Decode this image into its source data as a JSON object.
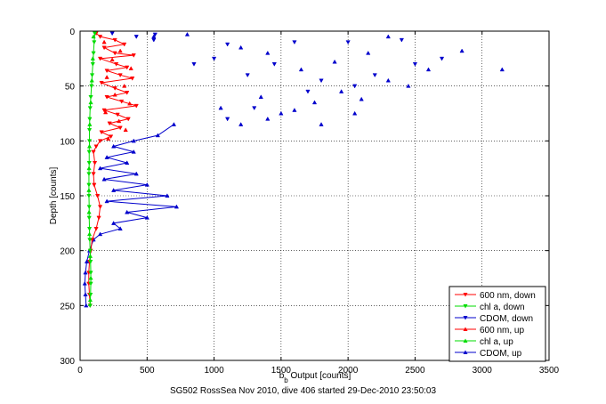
{
  "caption": "SG502 RossSea Nov 2010, dive 406 started 29-Dec-2010 23:50:03",
  "chart_data": {
    "type": "scatter",
    "xlabel": "b_b Output [counts]",
    "ylabel": "Depth [counts]",
    "xlim": [
      0,
      3500
    ],
    "ylim": [
      0,
      300
    ],
    "y_reversed": true,
    "grid": "dotted",
    "legend_placement": "bottom-right",
    "xticks": [
      "0",
      "500",
      "1000",
      "1500",
      "2000",
      "2500",
      "3000",
      "3500"
    ],
    "yticks": [
      "0",
      "50",
      "100",
      "150",
      "200",
      "250",
      "300"
    ],
    "series": [
      {
        "name": "600 nm, down",
        "color": "#ff0000",
        "marker": "triangle-down",
        "connected": true,
        "points": [
          [
            120,
            2
          ],
          [
            150,
            5
          ],
          [
            260,
            8
          ],
          [
            330,
            12
          ],
          [
            180,
            15
          ],
          [
            260,
            20
          ],
          [
            400,
            22
          ],
          [
            150,
            25
          ],
          [
            270,
            30
          ],
          [
            350,
            33
          ],
          [
            200,
            36
          ],
          [
            300,
            40
          ],
          [
            390,
            43
          ],
          [
            160,
            47
          ],
          [
            260,
            52
          ],
          [
            350,
            56
          ],
          [
            200,
            60
          ],
          [
            310,
            64
          ],
          [
            420,
            68
          ],
          [
            180,
            72
          ],
          [
            280,
            76
          ],
          [
            360,
            80
          ],
          [
            220,
            84
          ],
          [
            300,
            88
          ],
          [
            160,
            92
          ],
          [
            230,
            96
          ],
          [
            150,
            100
          ],
          [
            120,
            105
          ],
          [
            100,
            110
          ],
          [
            110,
            120
          ],
          [
            100,
            130
          ],
          [
            105,
            140
          ],
          [
            130,
            150
          ],
          [
            150,
            160
          ],
          [
            140,
            170
          ],
          [
            120,
            180
          ],
          [
            90,
            190
          ],
          [
            80,
            200
          ],
          [
            70,
            210
          ],
          [
            65,
            220
          ],
          [
            65,
            230
          ],
          [
            70,
            240
          ],
          [
            75,
            250
          ]
        ]
      },
      {
        "name": "chl a, down",
        "color": "#00dd00",
        "marker": "triangle-down",
        "connected": true,
        "points": [
          [
            110,
            2
          ],
          [
            105,
            10
          ],
          [
            100,
            20
          ],
          [
            95,
            30
          ],
          [
            90,
            40
          ],
          [
            85,
            50
          ],
          [
            80,
            60
          ],
          [
            75,
            70
          ],
          [
            72,
            80
          ],
          [
            70,
            90
          ],
          [
            70,
            100
          ],
          [
            68,
            110
          ],
          [
            68,
            120
          ],
          [
            66,
            130
          ],
          [
            66,
            140
          ],
          [
            66,
            150
          ],
          [
            68,
            160
          ],
          [
            68,
            170
          ],
          [
            70,
            180
          ],
          [
            72,
            190
          ],
          [
            75,
            200
          ],
          [
            78,
            210
          ],
          [
            80,
            220
          ],
          [
            80,
            230
          ],
          [
            78,
            240
          ],
          [
            75,
            250
          ]
        ]
      },
      {
        "name": "CDOM, down",
        "color": "#0000cc",
        "marker": "triangle-down",
        "connected": false,
        "points": [
          [
            240,
            2
          ],
          [
            420,
            5
          ],
          [
            550,
            8
          ],
          [
            560,
            3
          ],
          [
            1000,
            25
          ],
          [
            1100,
            12
          ],
          [
            1250,
            40
          ],
          [
            1450,
            30
          ],
          [
            1600,
            10
          ],
          [
            1800,
            45
          ],
          [
            2050,
            50
          ],
          [
            2400,
            8
          ],
          [
            2700,
            25
          ],
          [
            2200,
            40
          ],
          [
            2000,
            10
          ],
          [
            1100,
            80
          ],
          [
            1700,
            55
          ],
          [
            2500,
            30
          ],
          [
            850,
            30
          ],
          [
            1300,
            70
          ]
        ]
      },
      {
        "name": "600 nm, up",
        "color": "#ff0000",
        "marker": "triangle-up",
        "connected": false,
        "points": [
          [
            180,
            10
          ],
          [
            300,
            18
          ],
          [
            240,
            26
          ],
          [
            380,
            34
          ],
          [
            200,
            42
          ],
          [
            330,
            50
          ],
          [
            260,
            58
          ],
          [
            370,
            66
          ],
          [
            190,
            74
          ],
          [
            290,
            82
          ],
          [
            340,
            90
          ],
          [
            210,
            98
          ]
        ]
      },
      {
        "name": "chl a, up",
        "color": "#00dd00",
        "marker": "triangle-up",
        "connected": false,
        "points": [
          [
            100,
            5
          ],
          [
            95,
            25
          ],
          [
            88,
            45
          ],
          [
            80,
            65
          ],
          [
            72,
            85
          ],
          [
            70,
            105
          ],
          [
            67,
            125
          ],
          [
            66,
            145
          ],
          [
            67,
            165
          ],
          [
            70,
            185
          ],
          [
            76,
            205
          ],
          [
            80,
            225
          ],
          [
            76,
            245
          ]
        ]
      },
      {
        "name": "CDOM, up",
        "color": "#0000cc",
        "marker": "triangle-up",
        "connected": true,
        "points": [
          [
            700,
            85
          ],
          [
            580,
            95
          ],
          [
            400,
            100
          ],
          [
            250,
            105
          ],
          [
            400,
            110
          ],
          [
            200,
            115
          ],
          [
            350,
            120
          ],
          [
            150,
            125
          ],
          [
            420,
            130
          ],
          [
            180,
            135
          ],
          [
            500,
            140
          ],
          [
            250,
            145
          ],
          [
            650,
            150
          ],
          [
            200,
            155
          ],
          [
            720,
            160
          ],
          [
            350,
            165
          ],
          [
            500,
            170
          ],
          [
            250,
            175
          ],
          [
            300,
            180
          ],
          [
            150,
            185
          ],
          [
            100,
            190
          ],
          [
            70,
            200
          ],
          [
            50,
            210
          ],
          [
            40,
            220
          ],
          [
            35,
            230
          ],
          [
            40,
            240
          ],
          [
            45,
            250
          ]
        ]
      }
    ],
    "cdom_up_scatter": [
      [
        550,
        5
      ],
      [
        800,
        3
      ],
      [
        1200,
        15
      ],
      [
        1400,
        20
      ],
      [
        1650,
        35
      ],
      [
        1900,
        28
      ],
      [
        2150,
        20
      ],
      [
        2300,
        5
      ],
      [
        2600,
        35
      ],
      [
        2850,
        18
      ],
      [
        3150,
        35
      ],
      [
        1050,
        70
      ],
      [
        1350,
        60
      ],
      [
        1500,
        75
      ],
      [
        1750,
        65
      ],
      [
        1950,
        55
      ],
      [
        2050,
        75
      ],
      [
        2300,
        45
      ],
      [
        2450,
        50
      ],
      [
        1200,
        85
      ],
      [
        1400,
        80
      ],
      [
        1600,
        72
      ],
      [
        2100,
        62
      ],
      [
        1800,
        85
      ]
    ]
  }
}
